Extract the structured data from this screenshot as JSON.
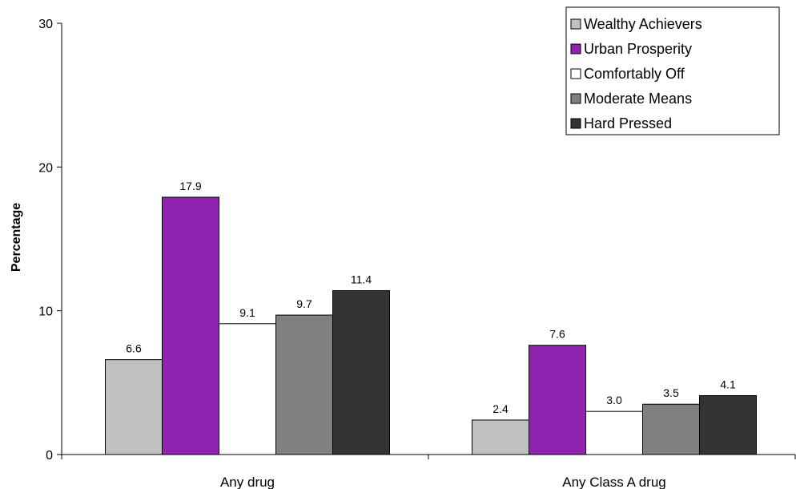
{
  "chart_data": {
    "type": "bar",
    "title": "",
    "xlabel": "",
    "ylabel": "Percentage",
    "ylim": [
      0,
      30
    ],
    "yticks": [
      0,
      10,
      20,
      30
    ],
    "categories": [
      "Any drug",
      "Any Class A drug"
    ],
    "series": [
      {
        "name": "Wealthy Achievers",
        "values": [
          6.6,
          2.4
        ],
        "labels": [
          "6.6",
          "2.4"
        ],
        "color": "#c0c0c0"
      },
      {
        "name": "Urban Prosperity",
        "values": [
          17.9,
          7.6
        ],
        "labels": [
          "17.9",
          "7.6"
        ],
        "color": "#9023b0"
      },
      {
        "name": "Comfortably Off",
        "values": [
          9.1,
          3.0
        ],
        "labels": [
          "9.1",
          "3.0"
        ],
        "color": "#ffffff"
      },
      {
        "name": "Moderate Means",
        "values": [
          9.7,
          3.5
        ],
        "labels": [
          "9.7",
          "3.5"
        ],
        "color": "#808080"
      },
      {
        "name": "Hard Pressed",
        "values": [
          11.4,
          4.1
        ],
        "labels": [
          "11.4",
          "4.1"
        ],
        "color": "#333333"
      }
    ],
    "legend": "top-right",
    "grid": false
  }
}
